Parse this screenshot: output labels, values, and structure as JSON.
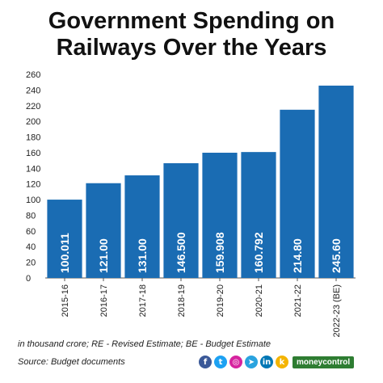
{
  "chart_data": {
    "type": "bar",
    "title_line1": "Government Spending on",
    "title_line2": "Railways Over the Years",
    "categories": [
      "2015-16",
      "2016-17",
      "2017-18",
      "2018-19",
      "2019-20",
      "2020-21",
      "2021-22",
      "2022-23 (BE)"
    ],
    "values": [
      100.011,
      121.0,
      131.0,
      146.5,
      159.908,
      160.792,
      214.8,
      245.6
    ],
    "value_labels": [
      "100.011",
      "121.00",
      "131.00",
      "146.500",
      "159.908",
      "160.792",
      "214.80",
      "245.60"
    ],
    "yticks": [
      0,
      20,
      40,
      60,
      80,
      100,
      120,
      140,
      160,
      180,
      200,
      220,
      240,
      260
    ],
    "ylim": [
      0,
      260
    ],
    "grid": false,
    "bar_color": "#1a6cb3"
  },
  "footnote": "in thousand crore; RE - Revised Estimate; BE - Budget Estimate",
  "source": "Source: Budget documents",
  "social": [
    {
      "icon": "facebook-icon",
      "glyph": "f",
      "color": "#3b5998"
    },
    {
      "icon": "twitter-icon",
      "glyph": "t",
      "color": "#1da1f2"
    },
    {
      "icon": "instagram-icon",
      "glyph": "◎",
      "color": "#d6249f"
    },
    {
      "icon": "telegram-icon",
      "glyph": "➤",
      "color": "#2aa3df"
    },
    {
      "icon": "linkedin-icon",
      "glyph": "in",
      "color": "#0077b5"
    },
    {
      "icon": "koo-icon",
      "glyph": "k",
      "color": "#f4b400"
    }
  ],
  "brand": "moneycontrol"
}
